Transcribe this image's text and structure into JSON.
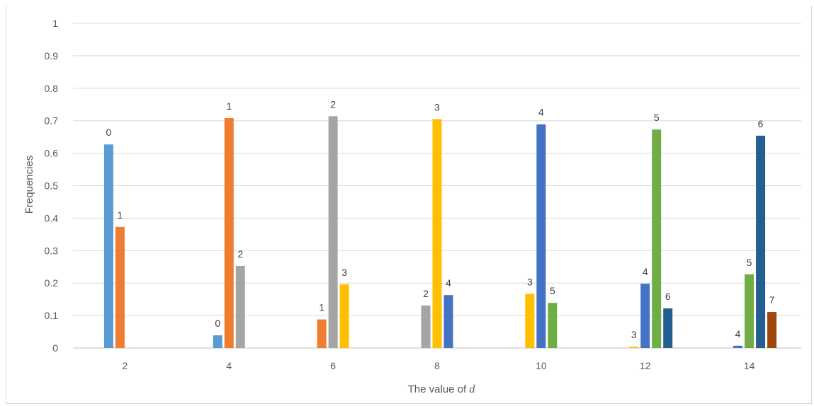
{
  "chart_data": {
    "type": "bar",
    "xlabel": "The value of d",
    "ylabel": "Frequencies",
    "ylim": [
      0,
      1
    ],
    "yticks": [
      "0",
      "0.1",
      "0.2",
      "0.3",
      "0.4",
      "0.5",
      "0.6",
      "0.7",
      "0.8",
      "0.9",
      "1"
    ],
    "grid": true,
    "categories": [
      "2",
      "4",
      "6",
      "8",
      "10",
      "12",
      "14"
    ],
    "groups": [
      {
        "category": "2",
        "bars": [
          {
            "label": "0",
            "value": 0.627,
            "color": "#5b9bd5"
          },
          {
            "label": "1",
            "value": 0.373,
            "color": "#ed7d31"
          }
        ]
      },
      {
        "category": "4",
        "bars": [
          {
            "label": "0",
            "value": 0.039,
            "color": "#5b9bd5"
          },
          {
            "label": "1",
            "value": 0.708,
            "color": "#ed7d31"
          },
          {
            "label": "2",
            "value": 0.253,
            "color": "#a5a5a5"
          }
        ]
      },
      {
        "category": "6",
        "bars": [
          {
            "label": "1",
            "value": 0.088,
            "color": "#ed7d31"
          },
          {
            "label": "2",
            "value": 0.714,
            "color": "#a5a5a5"
          },
          {
            "label": "3",
            "value": 0.196,
            "color": "#ffc000"
          }
        ]
      },
      {
        "category": "8",
        "bars": [
          {
            "label": "2",
            "value": 0.131,
            "color": "#a5a5a5"
          },
          {
            "label": "3",
            "value": 0.705,
            "color": "#ffc000"
          },
          {
            "label": "4",
            "value": 0.163,
            "color": "#4472c4"
          }
        ]
      },
      {
        "category": "10",
        "bars": [
          {
            "label": "3",
            "value": 0.167,
            "color": "#ffc000"
          },
          {
            "label": "4",
            "value": 0.689,
            "color": "#4472c4"
          },
          {
            "label": "5",
            "value": 0.139,
            "color": "#70ad47"
          }
        ]
      },
      {
        "category": "12",
        "bars": [
          {
            "label": "3",
            "value": 0.004,
            "color": "#ffc000"
          },
          {
            "label": "4",
            "value": 0.198,
            "color": "#4472c4"
          },
          {
            "label": "5",
            "value": 0.673,
            "color": "#70ad47"
          },
          {
            "label": "6",
            "value": 0.122,
            "color": "#255e91"
          }
        ]
      },
      {
        "category": "14",
        "bars": [
          {
            "label": "4",
            "value": 0.007,
            "color": "#4472c4"
          },
          {
            "label": "5",
            "value": 0.227,
            "color": "#70ad47"
          },
          {
            "label": "6",
            "value": 0.654,
            "color": "#255e91"
          },
          {
            "label": "7",
            "value": 0.111,
            "color": "#9e480e"
          }
        ]
      }
    ]
  }
}
